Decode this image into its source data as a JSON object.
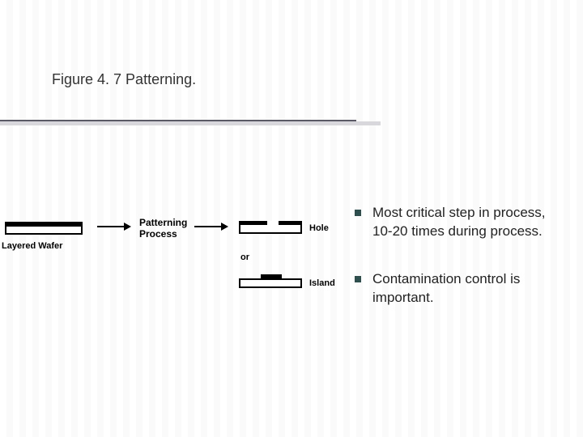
{
  "title": "Figure 4. 7 Patterning.",
  "diagram": {
    "wafer_label": "Layered Wafer",
    "process_label_line1": "Patterning",
    "process_label_line2": "Process",
    "hole_label": "Hole",
    "or_label": "or",
    "island_label": "Island"
  },
  "bullets": [
    {
      "text": "Most critical step in process, 10-20 times during process."
    },
    {
      "text": "Contamination control is important."
    }
  ],
  "colors": {
    "bullet_square": "#2f4f4f",
    "rule_dark": "#5a5a66",
    "rule_light": "#d8d8dc",
    "text": "#222222",
    "background": "#ffffff"
  }
}
